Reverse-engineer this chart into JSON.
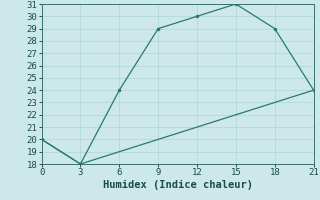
{
  "xlabel": "Humidex (Indice chaleur)",
  "line1_x": [
    0,
    3,
    6,
    9,
    12,
    15,
    18,
    21
  ],
  "line1_y": [
    20,
    18,
    24,
    29,
    30,
    31,
    29,
    24
  ],
  "line2_x": [
    0,
    3,
    6,
    9,
    12,
    15,
    18,
    21
  ],
  "line2_y": [
    20,
    18,
    19,
    20,
    21,
    22,
    23,
    24
  ],
  "line_color": "#2a7a6e",
  "bg_color": "#cde8e8",
  "grid_major_color": "#aed4d4",
  "grid_minor_color": "#bedddd",
  "xlim": [
    0,
    21
  ],
  "ylim": [
    18,
    31
  ],
  "xticks": [
    0,
    3,
    6,
    9,
    12,
    15,
    18,
    21
  ],
  "yticks": [
    18,
    19,
    20,
    21,
    22,
    23,
    24,
    25,
    26,
    27,
    28,
    29,
    30,
    31
  ],
  "tick_fontsize": 6.5,
  "label_fontsize": 7.5
}
